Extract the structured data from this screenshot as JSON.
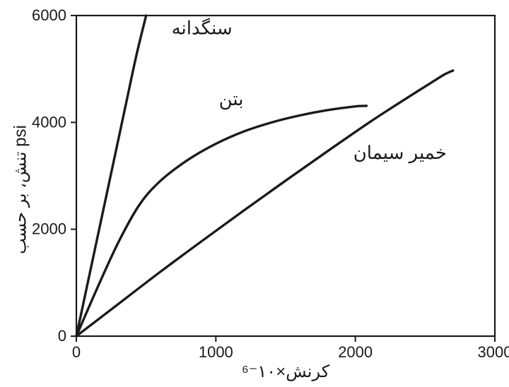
{
  "chart": {
    "type": "line",
    "background_color": "#ffffff",
    "curve_color": "#1a1a1a",
    "axis_color": "#1a1a1a",
    "line_width": 3.4,
    "xlim": [
      0,
      3000
    ],
    "ylim": [
      0,
      6000
    ],
    "xticks": [
      0,
      1000,
      2000,
      3000
    ],
    "yticks": [
      0,
      2000,
      4000,
      6000
    ],
    "tick_fontsize": 22,
    "label_fontsize": 24,
    "annot_fontsize": 26,
    "y_axis_label": "تنش، بر حسب psi",
    "x_axis_label": "کرنش×۱۰⁻⁶",
    "series": {
      "aggregate": {
        "label": "سنگدانه",
        "points": [
          [
            0,
            0
          ],
          [
            90,
            1100
          ],
          [
            180,
            2200
          ],
          [
            270,
            3300
          ],
          [
            360,
            4400
          ],
          [
            430,
            5250
          ],
          [
            500,
            6000
          ]
        ]
      },
      "concrete": {
        "label": "بتن",
        "points": [
          [
            0,
            0
          ],
          [
            150,
            900
          ],
          [
            300,
            1750
          ],
          [
            450,
            2450
          ],
          [
            600,
            2900
          ],
          [
            800,
            3300
          ],
          [
            1000,
            3600
          ],
          [
            1200,
            3830
          ],
          [
            1400,
            4000
          ],
          [
            1600,
            4130
          ],
          [
            1800,
            4230
          ],
          [
            2000,
            4300
          ],
          [
            2080,
            4310
          ]
        ]
      },
      "cement_paste": {
        "label": "خمیر سیمان",
        "points": [
          [
            0,
            0
          ],
          [
            300,
            600
          ],
          [
            600,
            1200
          ],
          [
            900,
            1780
          ],
          [
            1200,
            2350
          ],
          [
            1500,
            2910
          ],
          [
            1800,
            3460
          ],
          [
            2100,
            4000
          ],
          [
            2300,
            4340
          ],
          [
            2450,
            4590
          ],
          [
            2560,
            4770
          ],
          [
            2640,
            4900
          ],
          [
            2700,
            4970
          ]
        ]
      }
    },
    "xtick_labels": {
      "0": "0",
      "1000": "1000",
      "2000": "2000",
      "3000": "3000"
    },
    "ytick_labels": {
      "0": "0",
      "2000": "2000",
      "4000": "4000",
      "6000": "6000"
    }
  }
}
